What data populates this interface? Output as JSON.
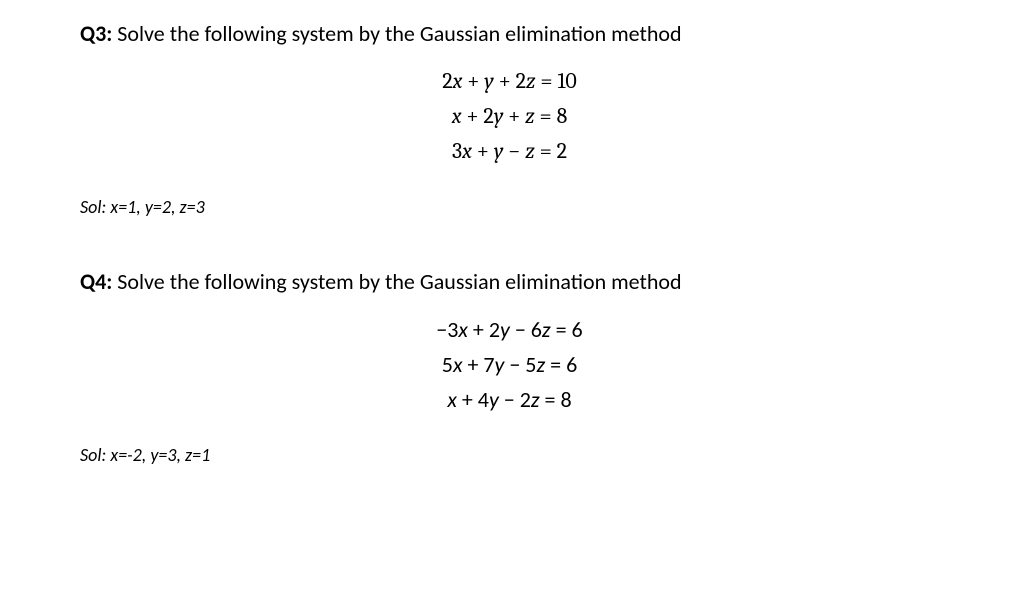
{
  "q3": {
    "label": "Q3:",
    "prompt": "Solve the following system by the Gaussian elimination method",
    "equations": {
      "eq1": {
        "lhs_html": "2<span class='var'>x</span> + <span class='var'>y</span> + 2<span class='var'>z</span>",
        "rhs": "10"
      },
      "eq2": {
        "lhs_html": "<span class='var'>x</span> + 2<span class='var'>y</span> + <span class='var'>z</span>",
        "rhs": "8"
      },
      "eq3": {
        "lhs_html": "3<span class='var'>x</span> + <span class='var'>y</span> − <span class='var'>z</span>",
        "rhs": "2"
      }
    },
    "solution": "Sol: x=1, y=2, z=3",
    "font_family": "'Cambria Math', Cambria, 'Times New Roman', serif"
  },
  "q4": {
    "label": "Q4:",
    "prompt": "Solve the following system by the Gaussian elimination method",
    "equations": {
      "eq1": {
        "lhs_html": "−3<span class='var'>x</span> + 2<span class='var'>y</span> − 6<span class='var'>z</span>",
        "rhs": "6"
      },
      "eq2": {
        "lhs_html": "5<span class='var'>x</span> + 7<span class='var'>y</span> − 5<span class='var'>z</span>",
        "rhs": "6"
      },
      "eq3": {
        "lhs_html": "<span class='var'>x</span> + 4<span class='var'>y</span> − 2<span class='var'>z</span>",
        "rhs": "8"
      }
    },
    "solution": "Sol: x=-2, y=3, z=1",
    "font_family": "Calibri, 'Segoe UI', Arial, sans-serif"
  },
  "colors": {
    "background": "#ffffff",
    "text": "#000000"
  },
  "font_sizes": {
    "title": 22,
    "equations": 22,
    "solution": 18
  }
}
